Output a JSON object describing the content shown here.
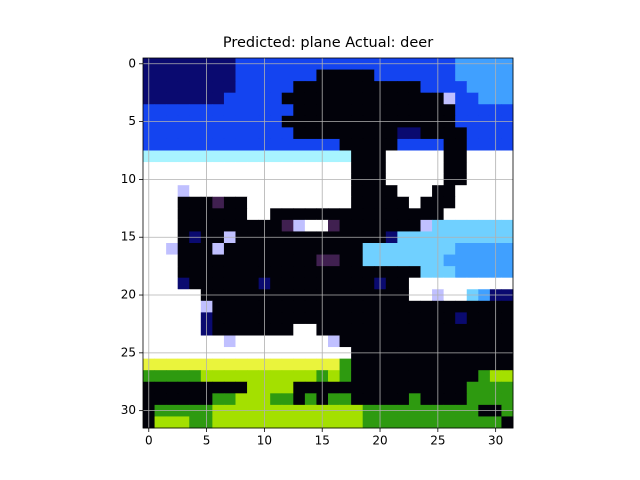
{
  "chart_data": {
    "type": "image",
    "title": "Predicted: plane Actual: deer",
    "xlim": [
      -0.5,
      31.5
    ],
    "ylim": [
      31.5,
      -0.5
    ],
    "xticks": [
      0,
      5,
      10,
      15,
      20,
      25,
      30
    ],
    "yticks": [
      0,
      5,
      10,
      15,
      20,
      25,
      30
    ],
    "grid": true,
    "palette": {
      "K": "#02020a",
      "D": "#0a0a70",
      "B": "#1444f0",
      "S": "#40a0ff",
      "L": "#70d0ff",
      "C": "#a8f4ff",
      "W": "#ffffff",
      "P": "#c0c0ff",
      "M": "#402050",
      "Y": "#eaf43c",
      "G": "#2e9a10",
      "g": "#a4e000"
    },
    "image": [
      "DDDDDDDDBBBBBBBBBBBBBBBBBBBSSSSS",
      "DDDDDDDDBBBBBBBKKKKKBBBBBBBSSSSS",
      "DDDDDDDDBBBBBKKKKKKKKKKKBBBBSSSS",
      "DDDDDDDBBBBBKKKKKKKKKKKKKKPBBSSS",
      "BBBBBBBBBBBBBKKKKKKKKKKKKKKBBBBB",
      "BBBBBBBBBBBBKKKKKKKKKKKKKKKBBBBB",
      "BBBBBBBBBBBBBKKKKKKKKKDDKKKKBBBB",
      "BBBBBBBBBBBBBBBBBKKKKKBBBBKKBBBB",
      "CCCCCCCCCCCCCCCCCCKKKWWWWWKKWWWW",
      "WWWWWWWWWWWWWWWWWWKKKWWWWWKKWWWW",
      "WWWWWWWWWWWWWWWWWWKKKWWWWWKKWWWW",
      "WWWPWWWWWWWWWWWWWWKKKKWWWKKWWWWW",
      "WWWKKKMKKWWWWWWWWWKKKKKWKKKWWWWW",
      "WWWKKKKKKWWKKKKKKKKKKKKKKKWWWWWW",
      "WWWKKKKKKKKKMPWWMKKKKKKKPLLLLLLL",
      "WWWKDKKPKKKKKKKKKKKKKDLLLLLLLLLL",
      "WWPKKKPKKKKKKKKKKKKLLLLLLLLSSSSS",
      "WWWKKKKKKKKKKKKMMKKLLLLLLLSSSSSS",
      "WWWKKKKKKKKKKKKKKKKKKKKKLLLSSSSS",
      "WWWDKKKKKKDKKKKKKKKKDKKWWWWWWWWW",
      "WWWWWKKKKKKKKKKKKKKKKKKWWPWWLSDD",
      "WWWWWPKKKKKKKKKKKKKKKKKKKKKKKKKK",
      "WWWWWDKKKKKKKKKKKKKKKKKKKKKDKKKK",
      "WWWWWDKKKKKKKWWKKKKKKKKKKKKKKKKK",
      "WWWWWWWPWWWWWWWWPKKKKKKKKKKKKKKK",
      "WWWWWWWWWWWWWWWWWWKKKKKKKKKKKKKK",
      "YYYYYYYYYYYYYYYYYGKKKKKKKKKKKKKK",
      "GGGGGggggggggggGgGKKKKKKKKKKKGgg",
      "KKKKKKKKKggggKKKKKKKKKKKKKKKGGGG",
      "KKKKKKGGgggGGKGKGGKKKKKGKKKKGGGG",
      "KGGGGGgggggggggggggGGGGGGGGGGKKG",
      "KgggGGgggggggggggggGGGGGGGGGGGGK"
    ]
  }
}
